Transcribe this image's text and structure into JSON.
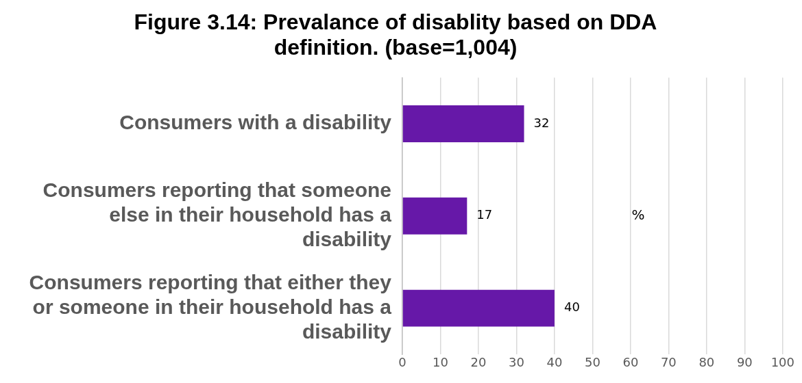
{
  "chart_data": {
    "type": "bar",
    "orientation": "horizontal",
    "title": "Figure 3.14: Prevalance of disablity based on DDA definition. (base=1,004)",
    "categories": [
      "Consumers with a disability",
      "Consumers reporting that someone else in their household has a disability",
      "Consumers reporting that either they or someone in their household has a disability"
    ],
    "values": [
      32,
      17,
      40
    ],
    "color": "#6618a8",
    "xlim": [
      0,
      100
    ],
    "xticks": [
      0,
      10,
      20,
      30,
      40,
      50,
      60,
      70,
      80,
      90,
      100
    ],
    "grid": "x",
    "legend": false,
    "data_labels": true,
    "annotations": [
      "%"
    ]
  }
}
